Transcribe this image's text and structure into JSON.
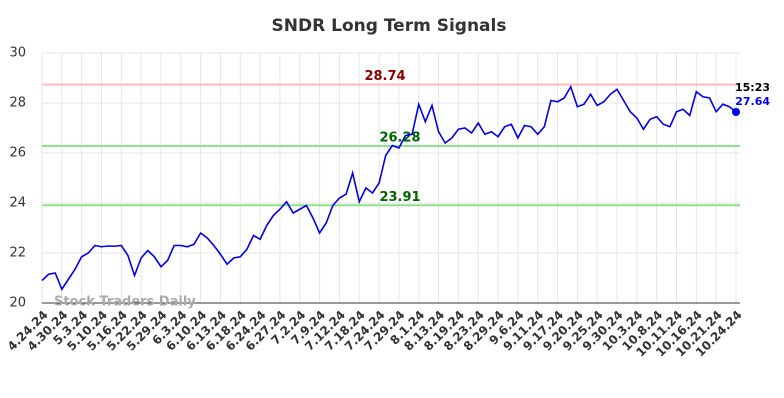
{
  "chart_data": {
    "type": "line",
    "title": "SNDR Long Term Signals",
    "watermark": "Stock Traders Daily",
    "last_time": "15:23",
    "color": "#0000ee",
    "grid": true,
    "ylim": [
      20,
      30
    ],
    "yticks": [
      20,
      22,
      24,
      26,
      28,
      30
    ],
    "hlines": [
      {
        "value": 28.74,
        "color": "#ffbbbb",
        "label_color": "#8b0000"
      },
      {
        "value": 26.28,
        "color": "#90e090",
        "label_color": "#006400"
      },
      {
        "value": 23.91,
        "color": "#90e090",
        "label_color": "#006400"
      }
    ],
    "categories": [
      "4.24.24",
      null,
      null,
      "4.30.24",
      null,
      null,
      "5.3.24",
      null,
      null,
      "5.10.24",
      null,
      null,
      "5.16.24",
      null,
      null,
      "5.22.24",
      null,
      null,
      "5.29.24",
      null,
      null,
      "6.3.24",
      null,
      null,
      "6.10.24",
      null,
      null,
      "6.13.24",
      null,
      null,
      "6.18.24",
      null,
      null,
      "6.24.24",
      null,
      null,
      "6.27.24",
      null,
      null,
      "7.2.24",
      null,
      null,
      "7.9.24",
      null,
      null,
      "7.12.24",
      null,
      null,
      "7.18.24",
      null,
      null,
      "7.24.24",
      null,
      null,
      "7.29.24",
      null,
      null,
      "8.1.24",
      null,
      null,
      "8.13.24",
      null,
      null,
      "8.19.24",
      null,
      null,
      "8.23.24",
      null,
      null,
      "8.29.24",
      null,
      null,
      "9.6.24",
      null,
      null,
      "9.11.24",
      null,
      null,
      "9.17.24",
      null,
      null,
      "9.20.24",
      null,
      null,
      "9.25.24",
      null,
      null,
      "9.30.24",
      null,
      null,
      "10.3.24",
      null,
      null,
      "10.8.24",
      null,
      null,
      "10.11.24",
      null,
      null,
      "10.16.24",
      null,
      null,
      "10.21.24",
      null,
      null,
      "10.24.24"
    ],
    "values": [
      20.9,
      21.15,
      21.2,
      20.55,
      20.95,
      21.35,
      21.85,
      22.0,
      22.3,
      22.25,
      22.28,
      22.27,
      22.3,
      21.9,
      21.1,
      21.8,
      22.1,
      21.85,
      21.45,
      21.7,
      22.3,
      22.3,
      22.25,
      22.35,
      22.8,
      22.6,
      22.3,
      21.95,
      21.55,
      21.8,
      21.85,
      22.15,
      22.7,
      22.55,
      23.1,
      23.5,
      23.75,
      24.05,
      23.6,
      23.75,
      23.9,
      23.4,
      22.8,
      23.2,
      23.9,
      24.2,
      24.35,
      25.2,
      24.05,
      24.6,
      24.4,
      24.8,
      25.9,
      26.3,
      26.2,
      26.7,
      26.75,
      27.95,
      27.25,
      27.9,
      26.85,
      26.4,
      26.6,
      26.95,
      27.0,
      26.8,
      27.2,
      26.75,
      26.85,
      26.65,
      27.05,
      27.15,
      26.6,
      27.1,
      27.05,
      26.75,
      27.05,
      28.1,
      28.05,
      28.2,
      28.65,
      27.85,
      27.95,
      28.35,
      27.9,
      28.05,
      28.35,
      28.55,
      28.1,
      27.65,
      27.4,
      26.95,
      27.35,
      27.45,
      27.15,
      27.05,
      27.65,
      27.75,
      27.5,
      28.45,
      28.25,
      28.2,
      27.65,
      27.95,
      27.85,
      27.64
    ]
  }
}
